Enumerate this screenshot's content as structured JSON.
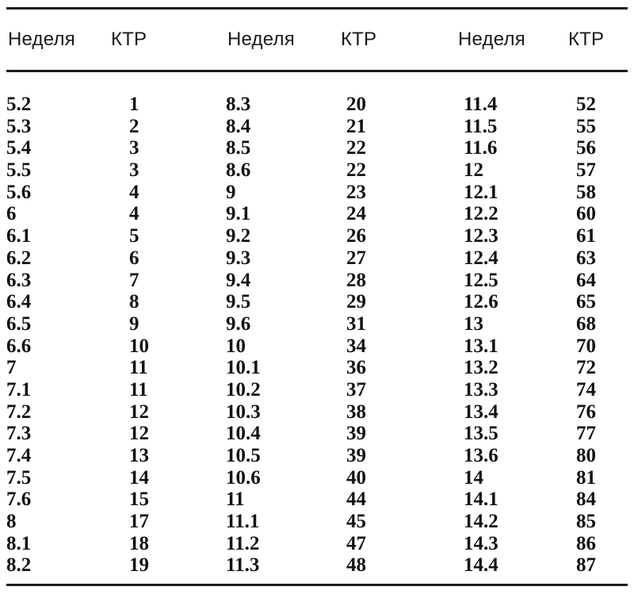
{
  "page": {
    "background": "#ffffff",
    "text_color": "#121212",
    "rule_color": "#1c1c1c"
  },
  "table": {
    "header_labels": [
      "Неделя",
      "КТР",
      "Неделя",
      "КТР",
      "Неделя",
      "КТР"
    ],
    "rows": [
      [
        "5.2",
        "1",
        "8.3",
        "20",
        "11.4",
        "52"
      ],
      [
        "5.3",
        "2",
        "8.4",
        "21",
        "11.5",
        "55"
      ],
      [
        "5.4",
        "3",
        "8.5",
        "22",
        "11.6",
        "56"
      ],
      [
        "5.5",
        "3",
        "8.6",
        "22",
        "12",
        "57"
      ],
      [
        "5.6",
        "4",
        "9",
        "23",
        "12.1",
        "58"
      ],
      [
        "6",
        "4",
        "9.1",
        "24",
        "12.2",
        "60"
      ],
      [
        "6.1",
        "5",
        "9.2",
        "26",
        "12.3",
        "61"
      ],
      [
        "6.2",
        "6",
        "9.3",
        "27",
        "12.4",
        "63"
      ],
      [
        "6.3",
        "7",
        "9.4",
        "28",
        "12.5",
        "64"
      ],
      [
        "6.4",
        "8",
        "9.5",
        "29",
        "12.6",
        "65"
      ],
      [
        "6.5",
        "9",
        "9.6",
        "31",
        "13",
        "68"
      ],
      [
        "6.6",
        "10",
        "10",
        "34",
        "13.1",
        "70"
      ],
      [
        "7",
        "11",
        "10.1",
        "36",
        "13.2",
        "72"
      ],
      [
        "7.1",
        "11",
        "10.2",
        "37",
        "13.3",
        "74"
      ],
      [
        "7.2",
        "12",
        "10.3",
        "38",
        "13.4",
        "76"
      ],
      [
        "7.3",
        "12",
        "10.4",
        "39",
        "13.5",
        "77"
      ],
      [
        "7.4",
        "13",
        "10.5",
        "39",
        "13.6",
        "80"
      ],
      [
        "7.5",
        "14",
        "10.6",
        "40",
        "14",
        "81"
      ],
      [
        "7.6",
        "15",
        "11",
        "44",
        "14.1",
        "84"
      ],
      [
        "8",
        "17",
        "11.1",
        "45",
        "14.2",
        "85"
      ],
      [
        "8.1",
        "18",
        "11.2",
        "47",
        "14.3",
        "86"
      ],
      [
        "8.2",
        "19",
        "11.3",
        "48",
        "14.4",
        "87"
      ]
    ]
  }
}
